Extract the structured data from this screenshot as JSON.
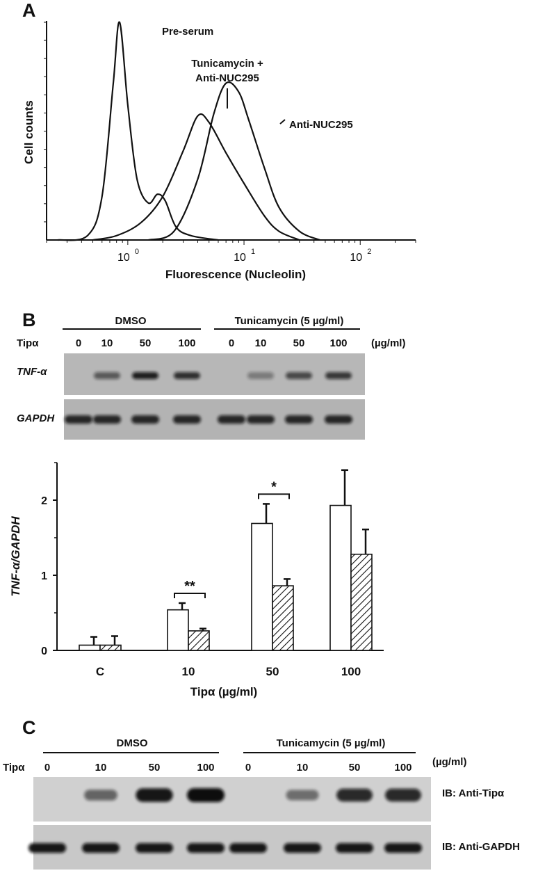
{
  "panel_a": {
    "letter": "A",
    "ylabel": "Cell counts",
    "xlabel": "Fluorescence (Nucleolin)",
    "xticks": [
      "10",
      "10",
      "10"
    ],
    "xtick_exponents": [
      "0",
      "1",
      "2"
    ],
    "annotations": {
      "pre_serum": "Pre-serum",
      "tunicamycin_line1": "Tunicamycin +",
      "tunicamycin_line2": "Anti-NUC295",
      "anti_nuc": "Anti-NUC295"
    },
    "chart_data": {
      "type": "line",
      "x_scale": "log",
      "xlim": [
        0.2,
        300
      ],
      "series": [
        {
          "label": "Pre-serum",
          "color": "#111111",
          "points": [
            [
              0.25,
              0
            ],
            [
              0.45,
              0.02
            ],
            [
              0.6,
              0.2
            ],
            [
              0.75,
              0.72
            ],
            [
              0.85,
              1.0
            ],
            [
              1.0,
              0.62
            ],
            [
              1.2,
              0.28
            ],
            [
              1.5,
              0.17
            ],
            [
              1.8,
              0.21
            ],
            [
              2.1,
              0.18
            ],
            [
              2.6,
              0.06
            ],
            [
              3.5,
              0.02
            ],
            [
              6,
              0
            ]
          ]
        },
        {
          "label": "Tunicamycin + Anti-NUC295",
          "color": "#111111",
          "points": [
            [
              0.5,
              0
            ],
            [
              0.8,
              0.02
            ],
            [
              1.3,
              0.08
            ],
            [
              2,
              0.2
            ],
            [
              3,
              0.41
            ],
            [
              4,
              0.57
            ],
            [
              5,
              0.54
            ],
            [
              7,
              0.4
            ],
            [
              10,
              0.26
            ],
            [
              15,
              0.11
            ],
            [
              20,
              0.04
            ],
            [
              30,
              0
            ]
          ]
        },
        {
          "label": "Anti-NUC295",
          "color": "#111111",
          "points": [
            [
              1.5,
              0
            ],
            [
              2.5,
              0.04
            ],
            [
              4,
              0.28
            ],
            [
              5.5,
              0.58
            ],
            [
              7,
              0.72
            ],
            [
              9,
              0.68
            ],
            [
              11,
              0.55
            ],
            [
              15,
              0.33
            ],
            [
              20,
              0.15
            ],
            [
              30,
              0.04
            ],
            [
              45,
              0
            ]
          ]
        }
      ]
    }
  },
  "panel_b": {
    "letter": "B",
    "gel": {
      "group_dmso": "DMSO",
      "group_tunicamycin": "Tunicamycin (5 µg/ml)",
      "row_label": "Tipα",
      "lanes": [
        "0",
        "10",
        "50",
        "100",
        "0",
        "10",
        "50",
        "100"
      ],
      "unit": "(µg/ml)",
      "gene1": "TNF-α",
      "gene2": "GAPDH"
    },
    "chart_data": {
      "type": "bar",
      "title": "",
      "xlabel": "Tipα (µg/ml)",
      "ylabel": "TNF-α/GAPDH",
      "ylim": [
        0,
        2.5
      ],
      "yticks": [
        "0",
        "1",
        "2"
      ],
      "categories": [
        "C",
        "10",
        "50",
        "100"
      ],
      "series": [
        {
          "fill": "#ffffff",
          "values": [
            0.07,
            0.54,
            1.69,
            1.93
          ],
          "errors": [
            0.11,
            0.09,
            0.26,
            0.47
          ]
        },
        {
          "fill": "hatched",
          "values": [
            0.07,
            0.26,
            0.86,
            1.28
          ],
          "errors": [
            0.12,
            0.03,
            0.09,
            0.33
          ]
        }
      ],
      "significance": [
        {
          "category": "10",
          "label": "**"
        },
        {
          "category": "50",
          "label": "*"
        }
      ]
    }
  },
  "panel_c": {
    "letter": "C",
    "group_dmso": "DMSO",
    "group_tunicamycin": "Tunicamycin (5 µg/ml)",
    "row_label": "Tipα",
    "lanes": [
      "0",
      "10",
      "50",
      "100",
      "0",
      "10",
      "50",
      "100"
    ],
    "unit": "(µg/ml)",
    "blot1": "IB: Anti-Tipα",
    "blot2": "IB: Anti-GAPDH"
  }
}
